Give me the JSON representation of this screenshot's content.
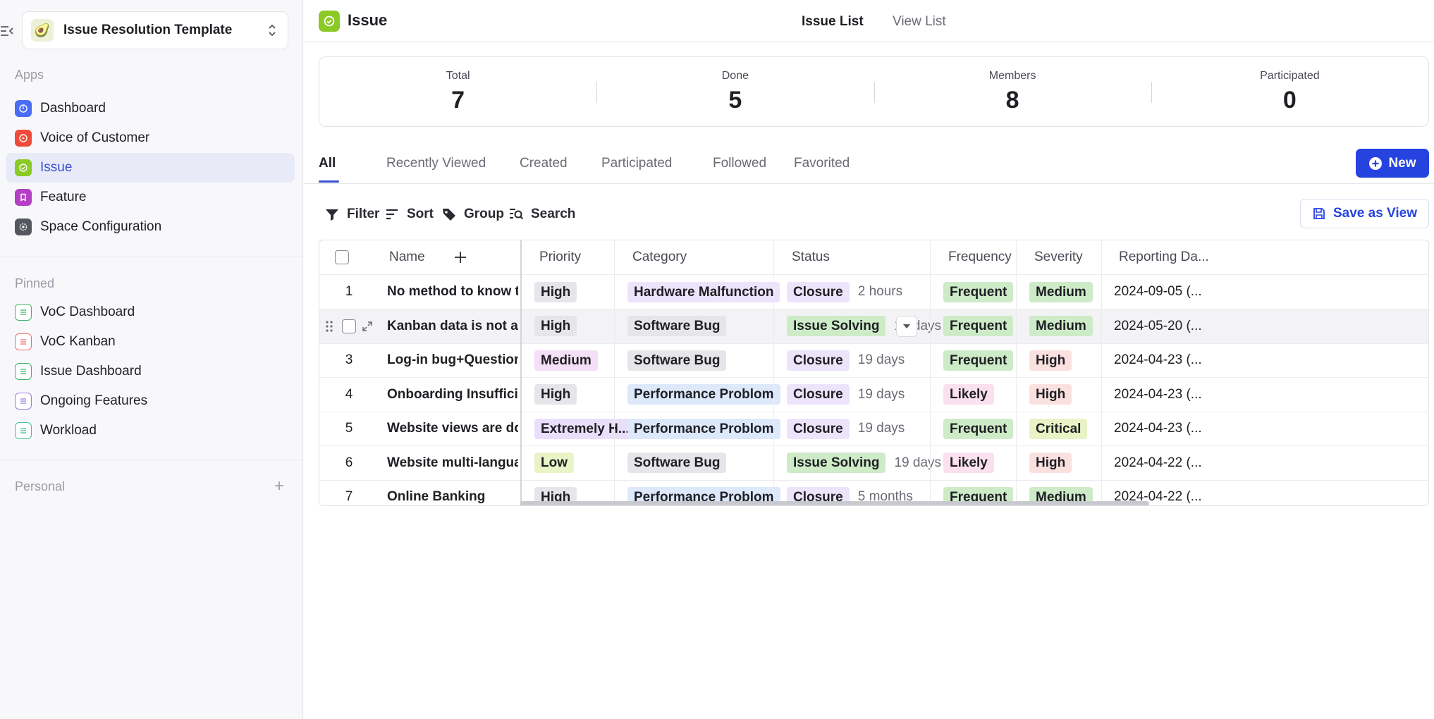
{
  "sidebar": {
    "workspace_name": "Issue Resolution Template",
    "apps_title": "Apps",
    "apps": [
      {
        "label": "Dashboard",
        "color": "#4a6cf7"
      },
      {
        "label": "Voice of Customer",
        "color": "#f04a3a"
      },
      {
        "label": "Issue",
        "color": "#8bc926"
      },
      {
        "label": "Feature",
        "color": "#b23fc4"
      },
      {
        "label": "Space Configuration",
        "color": "#55575f"
      }
    ],
    "pinned_title": "Pinned",
    "pinned": [
      {
        "label": "VoC Dashboard",
        "color": "#3fb56a"
      },
      {
        "label": "VoC Kanban",
        "color": "#f06a6a"
      },
      {
        "label": "Issue Dashboard",
        "color": "#3fb56a"
      },
      {
        "label": "Ongoing Features",
        "color": "#9b7be0"
      },
      {
        "label": "Workload",
        "color": "#3fbf9a"
      }
    ],
    "personal_title": "Personal"
  },
  "header": {
    "title": "Issue",
    "view_tabs": [
      "Issue List",
      "View List"
    ]
  },
  "stats": [
    {
      "label": "Total",
      "value": "7"
    },
    {
      "label": "Done",
      "value": "5"
    },
    {
      "label": "Members",
      "value": "8"
    },
    {
      "label": "Participated",
      "value": "0"
    }
  ],
  "filter_tabs": [
    "All",
    "Recently Viewed",
    "Created",
    "Participated",
    "Followed",
    "Favorited"
  ],
  "new_button": "New",
  "toolbar": {
    "filter": "Filter",
    "sort": "Sort",
    "group": "Group",
    "search": "Search",
    "save_view": "Save as View"
  },
  "table": {
    "columns": [
      "Name",
      "Priority",
      "Category",
      "Status",
      "Frequency",
      "Severity",
      "Reporting Da..."
    ],
    "rows": [
      {
        "num": "1",
        "name": "No method to know the ref...",
        "priority": "High",
        "category": "Hardware Malfunction",
        "status": "Closure",
        "duration": "2 hours",
        "frequency": "Frequent",
        "severity": "Medium",
        "date": "2024-09-05 (..."
      },
      {
        "num": "2",
        "name": "Kanban data is not automa...",
        "priority": "High",
        "category": "Software Bug",
        "status": "Issue Solving",
        "duration": "19 days",
        "frequency": "Frequent",
        "severity": "Medium",
        "date": "2024-05-20 (..."
      },
      {
        "num": "3",
        "name": "Log-in bug+Question/Issue...",
        "priority": "Medium",
        "category": "Software Bug",
        "status": "Closure",
        "duration": "19 days",
        "frequency": "Frequent",
        "severity": "High",
        "date": "2024-04-23 (..."
      },
      {
        "num": "4",
        "name": "Onboarding Insufficient+C...",
        "priority": "High",
        "category": "Performance Problom",
        "status": "Closure",
        "duration": "19 days",
        "frequency": "Likely",
        "severity": "High",
        "date": "2024-04-23 (..."
      },
      {
        "num": "5",
        "name": "Website views are down",
        "priority": "Extremely H...",
        "category": "Performance Problom",
        "status": "Closure",
        "duration": "19 days",
        "frequency": "Frequent",
        "severity": "Critical",
        "date": "2024-04-23 (..."
      },
      {
        "num": "6",
        "name": "Website multi-language se...",
        "priority": "Low",
        "category": "Software Bug",
        "status": "Issue Solving",
        "duration": "19 days",
        "frequency": "Likely",
        "severity": "High",
        "date": "2024-04-22 (..."
      },
      {
        "num": "7",
        "name": "Online Banking",
        "priority": "High",
        "category": "Performance Problom",
        "status": "Closure",
        "duration": "5 months",
        "frequency": "Frequent",
        "severity": "Medium",
        "date": "2024-04-22 (..."
      }
    ]
  },
  "tag_colors": {
    "High": [
      "#e6e6ea",
      "#1f1f24"
    ],
    "Medium": [
      "#f3dff6",
      "#1f1f24"
    ],
    "Low": [
      "#e9f3c6",
      "#1f1f24"
    ],
    "Extremely H...": [
      "#eadffa",
      "#1f1f24"
    ],
    "Hardware Malfunction": [
      "#ece4fb",
      "#1f1f24"
    ],
    "Software Bug": [
      "#e6e6ea",
      "#1f1f24"
    ],
    "Performance Problom": [
      "#dde8fb",
      "#1f1f24"
    ],
    "Closure": [
      "#ece4fb",
      "#1f1f24"
    ],
    "Issue Solving": [
      "#cdebc7",
      "#1f1f24"
    ],
    "Frequent": [
      "#cdebc7",
      "#1f1f24"
    ],
    "Likely": [
      "#fbe0ee",
      "#1f1f24"
    ],
    "Critical": [
      "#e9f3c6",
      "#1f1f24"
    ],
    "Severity-High": [
      "#fbe0e0",
      "#1f1f24"
    ],
    "Severity-Medium": [
      "#cdebc7",
      "#1f1f24"
    ]
  }
}
